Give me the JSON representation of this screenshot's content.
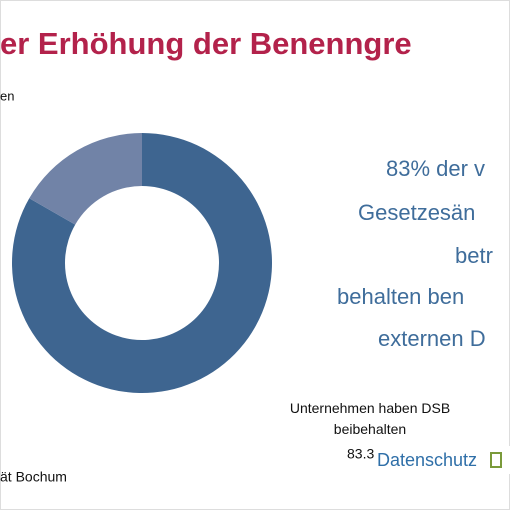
{
  "chart_data": {
    "type": "donut",
    "title": "er Erhöhung der Benenngre",
    "categories": [
      "Unternehmen haben DSB beibehalten",
      null
    ],
    "values": [
      83.3,
      16.7
    ],
    "value_labels": [
      "83.3",
      null
    ],
    "colors": [
      "#3e6590",
      "#7183a7"
    ]
  },
  "legend_fragment": "en",
  "source_fragment": "ät Bochum",
  "side_text": [
    "83% der v",
    "Gesetzesän",
    "betr",
    "behalten ben",
    "externen D"
  ],
  "logo": "Datenschutz"
}
